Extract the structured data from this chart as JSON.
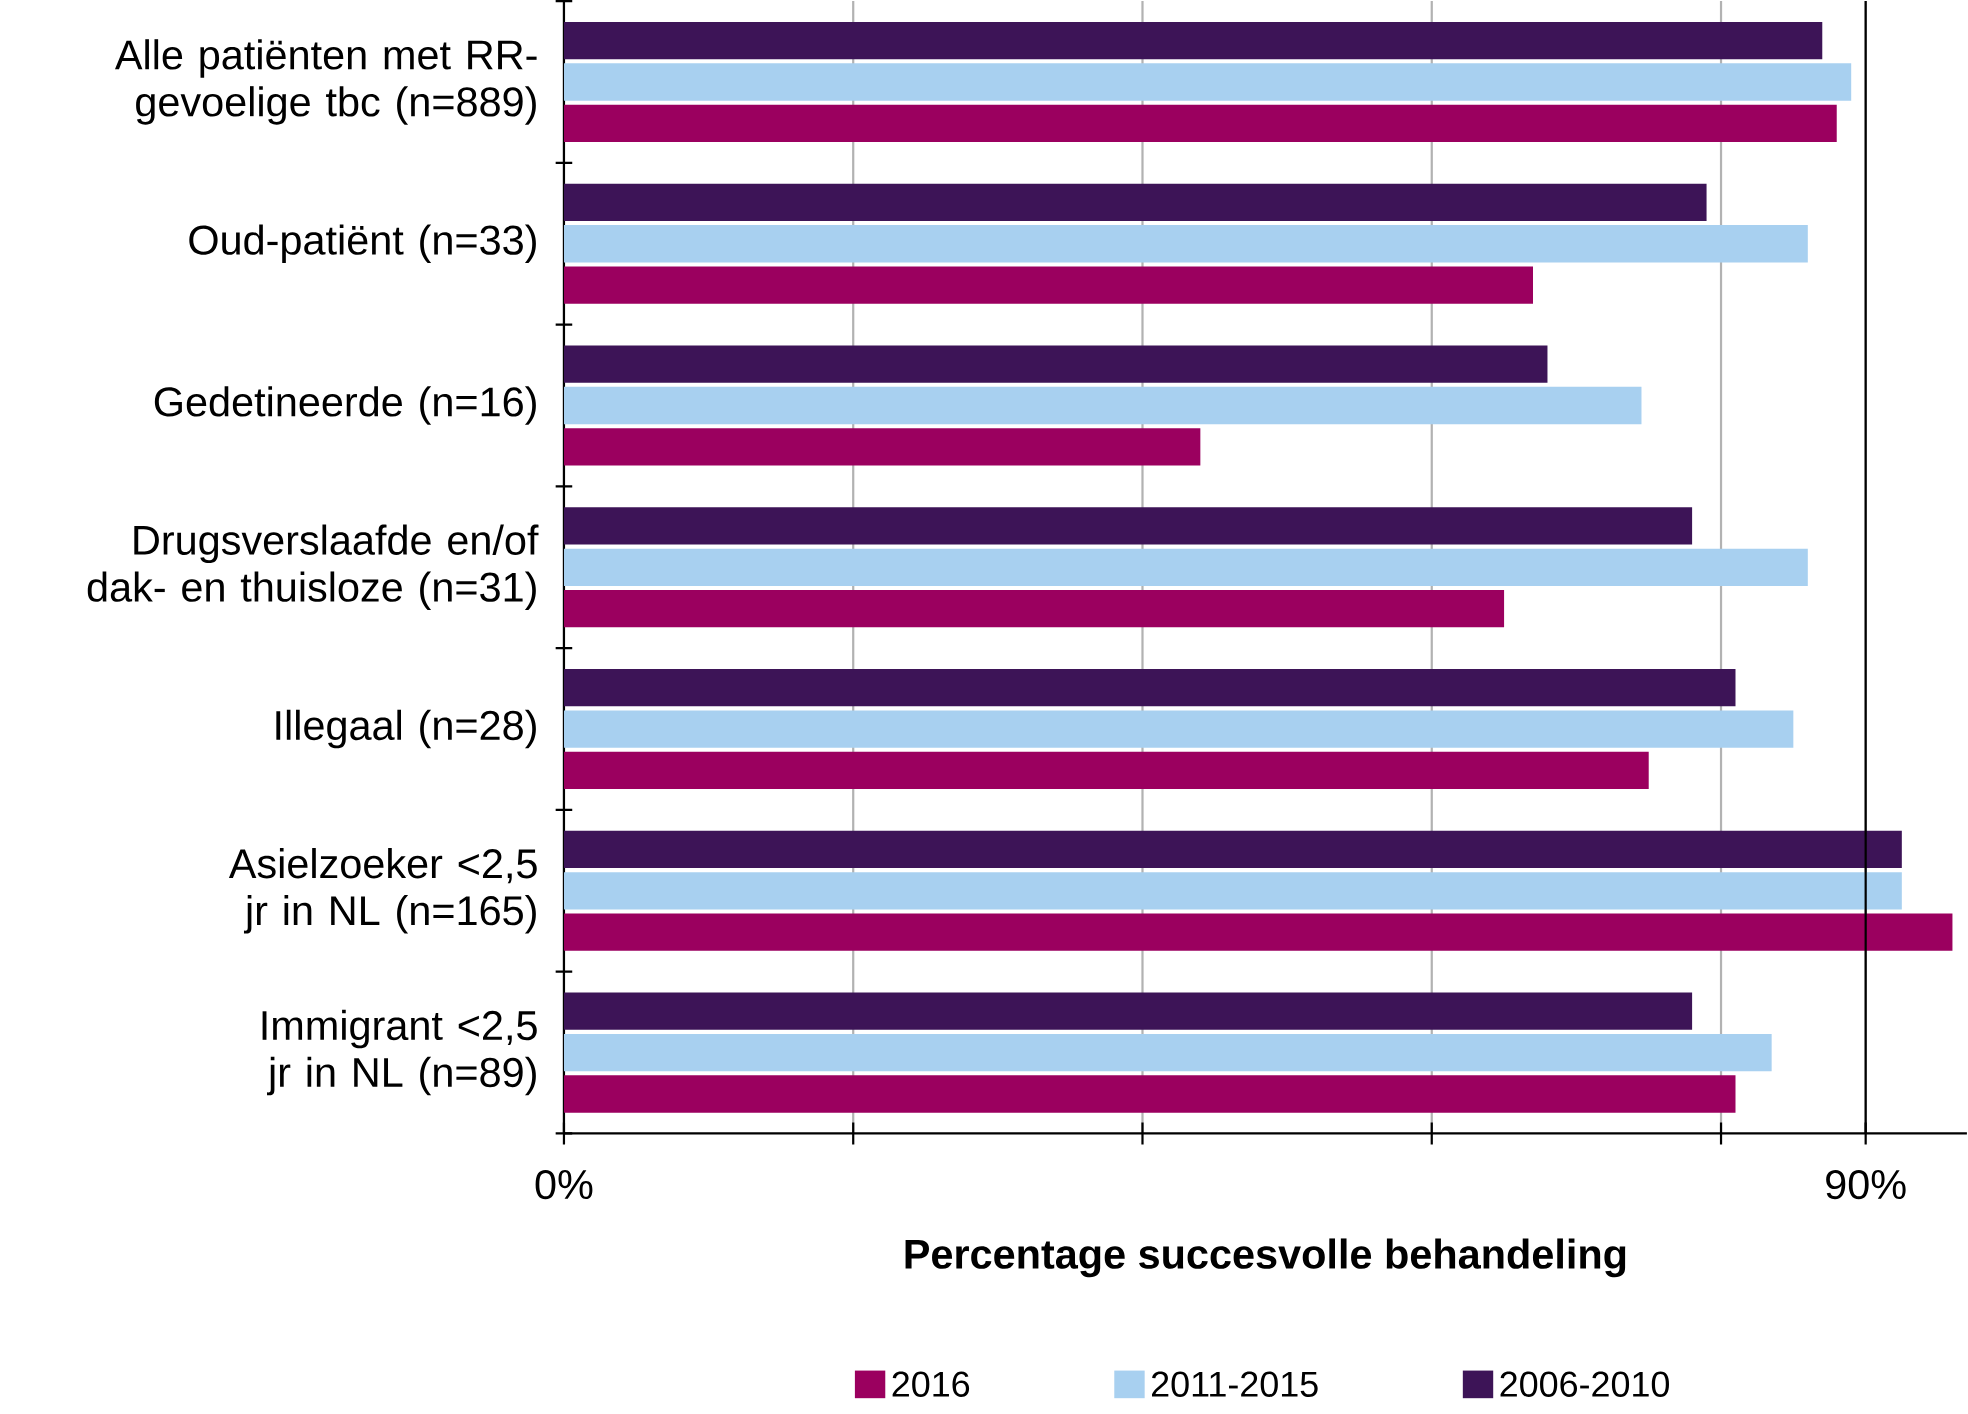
{
  "chart_data": {
    "type": "bar",
    "orientation": "horizontal",
    "xlabel": "Percentage succesvolle behandeling",
    "categories": [
      "Alle patiënten met RR-gevoelige tbc (n=889)",
      "Oud-patiënt (n=33)",
      "Gedetineerde (n=16)",
      "Drugsverslaafde en/of dak- en thuisloze (n=31)",
      "Illegaal (n=28)",
      "Asielzoeker <2,5 jr in NL (n=165)",
      "Immigrant <2,5 jr in NL (n=89)"
    ],
    "series": [
      {
        "name": "2016",
        "color": "#9b005f",
        "values": [
          88,
          67,
          44,
          65,
          75,
          96,
          81
        ]
      },
      {
        "name": "2011-2015",
        "color": "#a8d0f0",
        "values": [
          89,
          86,
          74.5,
          86,
          85,
          92.5,
          83.5
        ]
      },
      {
        "name": "2006-2010",
        "color": "#3d1457",
        "values": [
          87,
          79,
          68,
          78,
          81,
          92.5,
          78
        ]
      }
    ],
    "xlim": [
      0,
      97
    ],
    "xticks": [
      {
        "value": 0,
        "label": "0%"
      },
      {
        "value": 20,
        "label": null
      },
      {
        "value": 40,
        "label": null
      },
      {
        "value": 60,
        "label": null
      },
      {
        "value": 80,
        "label": null
      },
      {
        "value": 90,
        "label": "90%"
      }
    ],
    "ref_lines": [
      {
        "axis": "x",
        "value": 90,
        "color": "#000000"
      }
    ],
    "grid": "x",
    "legend": "bottom"
  }
}
